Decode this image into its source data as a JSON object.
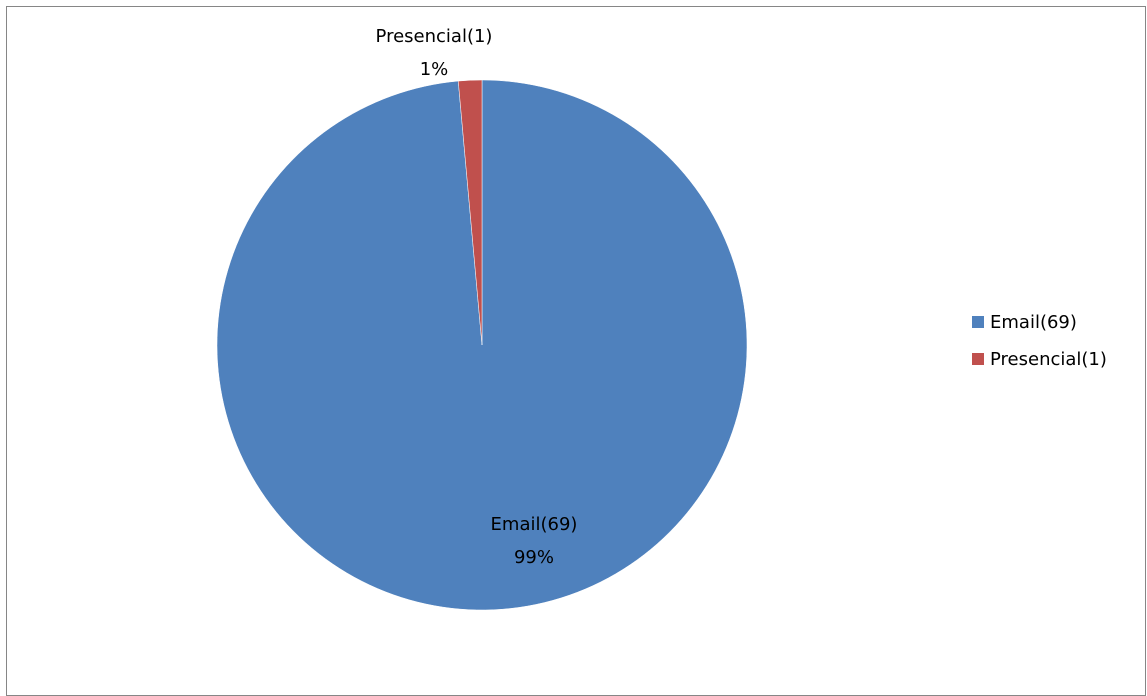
{
  "chart_data": {
    "type": "pie",
    "title": "",
    "slices": [
      {
        "label": "Email(69)",
        "value": 69,
        "percent_label": "99%",
        "color": "#4F81BD"
      },
      {
        "label": "Presencial(1)",
        "value": 1,
        "percent_label": "1%",
        "color": "#C0504D"
      }
    ],
    "legend": {
      "placement": "right",
      "entries": [
        "Email(69)",
        "Presencial(1)"
      ]
    },
    "start_angle": "12 o'clock",
    "direction": "clockwise"
  }
}
